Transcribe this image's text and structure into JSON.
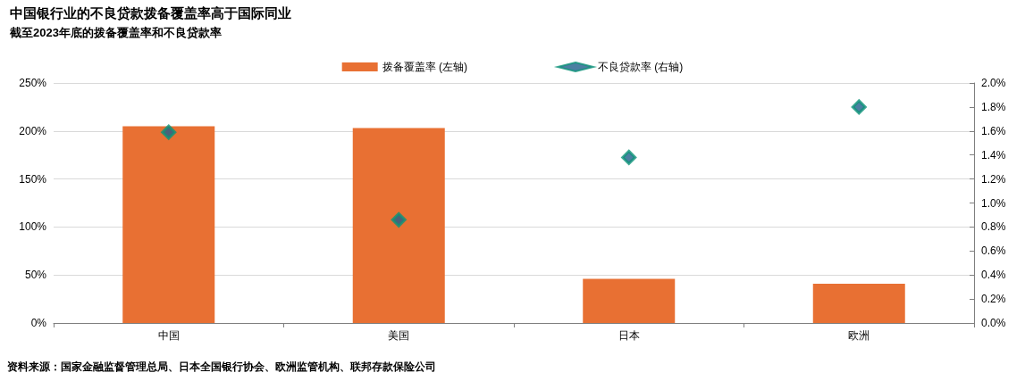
{
  "chart_data": {
    "type": "bar",
    "title": "中国银行业的不良贷款拨备覆盖率高于国际同业",
    "subtitle": "截至2023年底的拨备覆盖率和不良贷款率",
    "categories": [
      "中国",
      "美国",
      "日本",
      "欧洲"
    ],
    "series": [
      {
        "name": "拨备覆盖率 (左轴)",
        "color": "#e87033",
        "values": [
          205,
          203,
          46,
          41
        ]
      },
      {
        "name": "不良贷款率 (右轴)",
        "type": "scatter",
        "axis": "y2",
        "marker": "diamond",
        "color": "#0e9479",
        "values": [
          1.59,
          0.86,
          1.38,
          1.8
        ]
      }
    ],
    "ylim": [
      0,
      250
    ],
    "yticks": [
      {
        "value": 0,
        "label": "0%"
      },
      {
        "value": 50,
        "label": "50%"
      },
      {
        "value": 100,
        "label": "100%"
      },
      {
        "value": 150,
        "label": "150%"
      },
      {
        "value": 200,
        "label": "200%"
      },
      {
        "value": 250,
        "label": "250%"
      }
    ],
    "y2lim": [
      0,
      2.0
    ],
    "y2ticks": [
      {
        "value": 0,
        "label": "0.0%"
      },
      {
        "value": 0.2,
        "label": "0.2%"
      },
      {
        "value": 0.4,
        "label": "0.4%"
      },
      {
        "value": 0.6,
        "label": "0.6%"
      },
      {
        "value": 0.8,
        "label": "0.8%"
      },
      {
        "value": 1.0,
        "label": "1.0%"
      },
      {
        "value": 1.2,
        "label": "1.2%"
      },
      {
        "value": 1.4,
        "label": "1.4%"
      },
      {
        "value": 1.6,
        "label": "1.6%"
      },
      {
        "value": 1.8,
        "label": "1.8%"
      },
      {
        "value": 2.0,
        "label": "2.0%"
      }
    ],
    "grid": "y",
    "legend": "top",
    "annotations": [
      "资料来源：国家金融监督管理总局、日本全国银行协会、欧洲监管机构、联邦存款保险公司"
    ]
  }
}
